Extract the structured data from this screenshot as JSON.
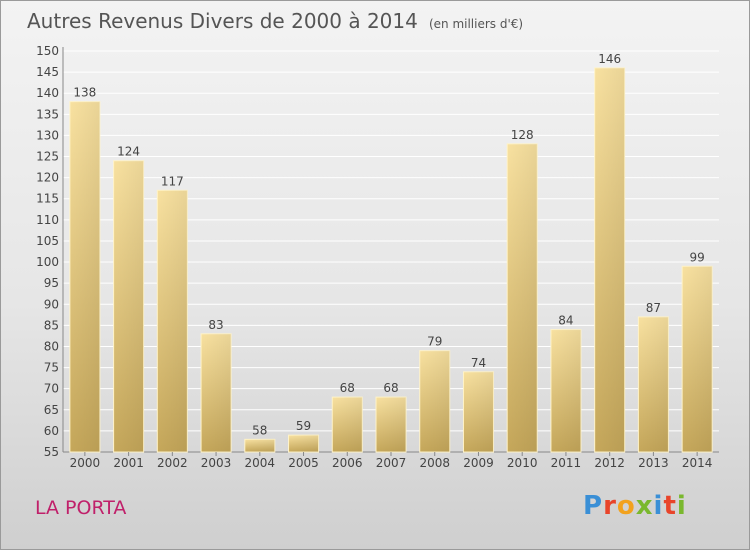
{
  "header": {
    "title": "Autres Revenus Divers de 2000 à 2014",
    "unit": "(en milliers d'€)"
  },
  "footer": {
    "commune": "LA PORTA",
    "logo_text": "Proxiti",
    "logo_colors": [
      "#3a8fd6",
      "#e8442a",
      "#f2a21e",
      "#7ab82e",
      "#3a8fd6",
      "#e8442a",
      "#7ab82e"
    ]
  },
  "chart_data": {
    "type": "bar",
    "title": "Autres Revenus Divers de 2000 à 2014",
    "subtitle": "(en milliers d'€)",
    "categories": [
      "2000",
      "2001",
      "2002",
      "2003",
      "2004",
      "2005",
      "2006",
      "2007",
      "2008",
      "2009",
      "2010",
      "2011",
      "2012",
      "2013",
      "2014"
    ],
    "values": [
      138,
      124,
      117,
      83,
      58,
      59,
      68,
      68,
      79,
      74,
      128,
      84,
      146,
      87,
      99
    ],
    "ylim": [
      55,
      150
    ],
    "ytick_step": 5,
    "grid": true,
    "legend": "none",
    "bar_color": "#e6c878"
  }
}
